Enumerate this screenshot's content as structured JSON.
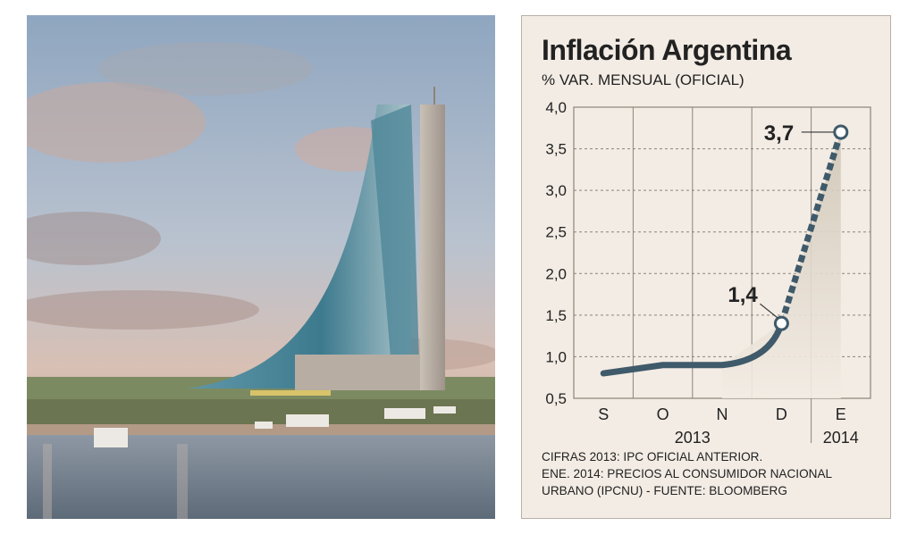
{
  "chart_data": {
    "type": "line",
    "title": "Inflación Argentina",
    "subtitle": "% VAR. MENSUAL (OFICIAL)",
    "categories": [
      "S",
      "O",
      "N",
      "D",
      "E"
    ],
    "year_labels": [
      "2013",
      "2014"
    ],
    "series": [
      {
        "values": [
          0.8,
          0.9,
          0.9,
          1.4,
          3.7
        ]
      }
    ],
    "annotations": [
      {
        "label": "1,4",
        "category": "D",
        "value": 1.4
      },
      {
        "label": "3,7",
        "category": "E",
        "value": 3.7
      }
    ],
    "yticks": [
      "4,0",
      "3,5",
      "3,0",
      "2,5",
      "2,0",
      "1,5",
      "1,0",
      "0,5"
    ],
    "ylim": [
      0.5,
      4.0
    ],
    "grid": true,
    "colors": {
      "line": "#3f5a6a",
      "panel": "#f3ece4"
    },
    "footnote": [
      "CIFRAS 2013: IPC OFICIAL ANTERIOR.",
      "ENE. 2014: PRECIOS AL CONSUMIDOR NACIONAL",
      "URBANO (IPCNU) - FUENTE: BLOOMBERG"
    ]
  }
}
